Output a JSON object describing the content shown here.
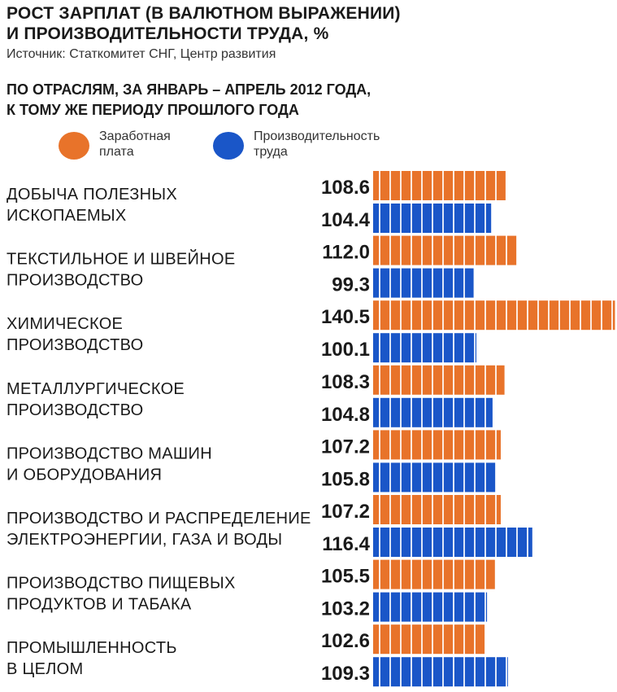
{
  "title_line1": "РОСТ ЗАРПЛАТ (В ВАЛЮТНОМ ВЫРАЖЕНИИ)",
  "title_line2": "И ПРОИЗВОДИТЕЛЬНОСТИ ТРУДА, %",
  "source": "Источник: Статкомитет СНГ, Центр развития",
  "subtitle_line1": "ПО ОТРАСЛЯМ, ЗА ЯНВАРЬ – АПРЕЛЬ 2012 ГОДА,",
  "subtitle_line2": "К ТОМУ ЖЕ ПЕРИОДУ ПРОШЛОГО ГОДА",
  "legend": [
    {
      "line1": "Заработная",
      "line2": "плата",
      "color": "#e8732a"
    },
    {
      "line1": "Производительность",
      "line2": "труда",
      "color": "#1a56c8"
    }
  ],
  "chart_data": {
    "type": "bar",
    "orientation": "horizontal",
    "categories": [
      [
        "ДОБЫЧА ПОЛЕЗНЫХ",
        "ИСКОПАЕМЫХ"
      ],
      [
        "ТЕКСТИЛЬНОЕ И ШВЕЙНОЕ",
        "ПРОИЗВОДСТВО"
      ],
      [
        "ХИМИЧЕСКОЕ",
        "ПРОИЗВОДСТВО"
      ],
      [
        "МЕТАЛЛУРГИЧЕСКОЕ",
        "ПРОИЗВОДСТВО"
      ],
      [
        "ПРОИЗВОДСТВО МАШИН",
        "И ОБОРУДОВАНИЯ"
      ],
      [
        "ПРОИЗВОДСТВО И РАСПРЕДЕЛЕНИЕ",
        "ЭЛЕКТРОЭНЕРГИИ, ГАЗА И ВОДЫ"
      ],
      [
        "ПРОИЗВОДСТВО ПИЩЕВЫХ",
        "ПРОДУКТОВ И ТАБАКА"
      ],
      [
        "ПРОМЫШЛЕННОСТЬ",
        "В ЦЕЛОМ"
      ]
    ],
    "series": [
      {
        "name": "Заработная плата",
        "color": "#e8732a",
        "values": [
          108.6,
          112.0,
          140.5,
          108.3,
          107.2,
          107.2,
          105.5,
          102.6
        ],
        "labels": [
          "108.6",
          "112.0",
          "140.5",
          "108.3",
          "107.2",
          "107.2",
          "105.5",
          "102.6"
        ]
      },
      {
        "name": "Производительность труда",
        "color": "#1a56c8",
        "values": [
          104.4,
          99.3,
          100.1,
          104.8,
          105.8,
          116.4,
          103.2,
          109.3
        ],
        "labels": [
          "104.4",
          "99.3",
          "100.1",
          "104.8",
          "105.8",
          "116.4",
          "103.2",
          "109.3"
        ]
      }
    ],
    "xlim": [
      70,
      140.5
    ],
    "grid": false,
    "legend_position": "top-left"
  }
}
